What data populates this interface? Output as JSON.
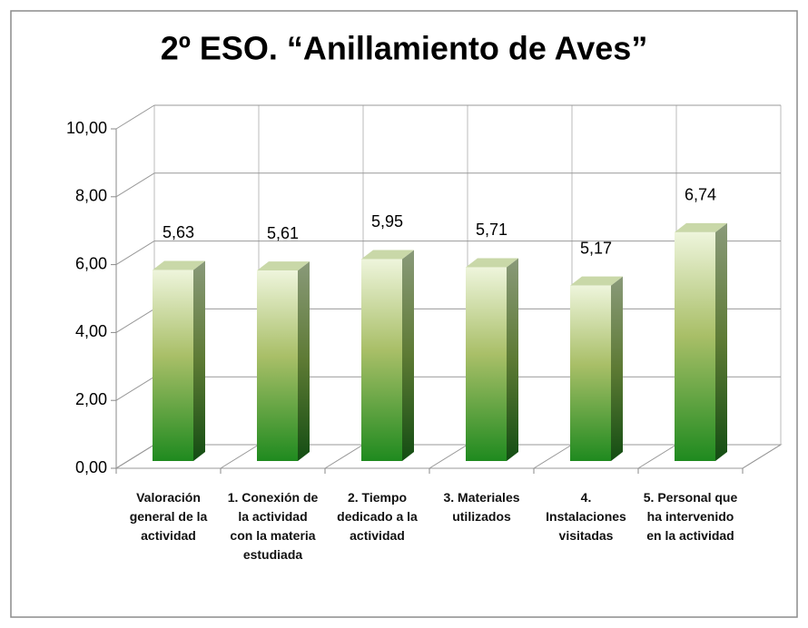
{
  "chart_data": {
    "type": "bar3d",
    "title": "2º ESO. “Anillamiento de Aves”",
    "categories": [
      "Valoración general de la actividad",
      "1. Conexión de la actividad con la materia estudiada",
      "2. Tiempo dedicado a la actividad",
      "3. Materiales utilizados",
      "4. Instalaciones visitadas",
      "5. Personal que ha intervenido en la actividad"
    ],
    "values": [
      5.63,
      5.61,
      5.95,
      5.71,
      5.17,
      6.74
    ],
    "value_labels": [
      "5,63",
      "5,61",
      "5,95",
      "5,71",
      "5,17",
      "6,74"
    ],
    "color": "#2e8b2e",
    "ylim": [
      0,
      10
    ],
    "yticks": [
      {
        "value": 0,
        "label": "0,00"
      },
      {
        "value": 2,
        "label": "2,00"
      },
      {
        "value": 4,
        "label": "4,00"
      },
      {
        "value": 6,
        "label": "6,00"
      },
      {
        "value": 8,
        "label": "8,00"
      },
      {
        "value": 10,
        "label": "10,00"
      }
    ],
    "grid": true
  }
}
